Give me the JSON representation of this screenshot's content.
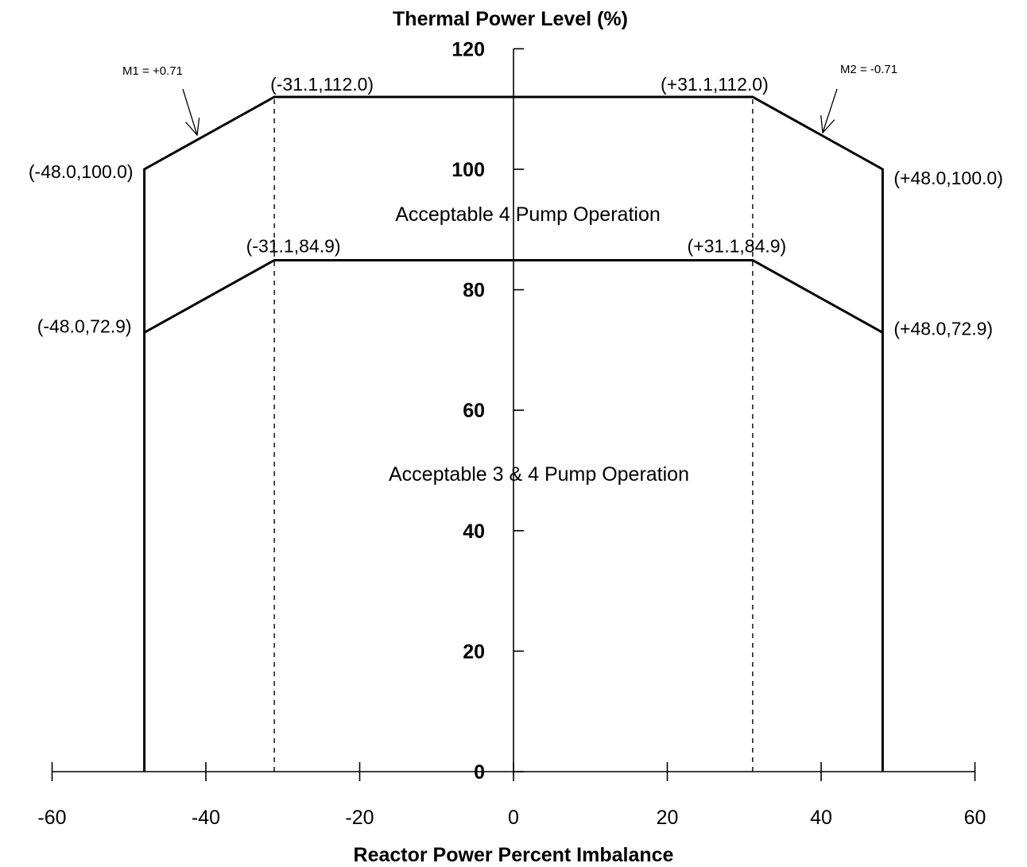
{
  "chart_data": {
    "type": "line",
    "title": "Thermal Power Level (%)",
    "xlabel": "Reactor Power Percent Imbalance",
    "ylabel": "Thermal Power Level (%)",
    "xlim": [
      -60,
      60
    ],
    "ylim": [
      0,
      120
    ],
    "xticks": [
      -60,
      -40,
      -20,
      0,
      20,
      40,
      60
    ],
    "yticks": [
      0,
      20,
      40,
      60,
      80,
      100,
      120
    ],
    "grid": false,
    "series": [
      {
        "x": [
          -48.0,
          -48.0,
          -31.1,
          31.1,
          48.0,
          48.0
        ],
        "y": [
          0,
          100.0,
          112.0,
          112.0,
          100.0,
          0
        ]
      },
      {
        "x": [
          -48.0,
          -31.1,
          31.1,
          48.0
        ],
        "y": [
          72.9,
          84.9,
          84.9,
          72.9
        ]
      }
    ],
    "reference_lines": [
      {
        "x": -31.1,
        "style": "dashed"
      },
      {
        "x": 31.1,
        "style": "dashed"
      }
    ],
    "point_labels": [
      {
        "x": -48.0,
        "y": 100.0,
        "text": "(-48.0,100.0)"
      },
      {
        "x": -31.1,
        "y": 112.0,
        "text": "(-31.1,112.0)"
      },
      {
        "x": 31.1,
        "y": 112.0,
        "text": "(+31.1,112.0)"
      },
      {
        "x": 48.0,
        "y": 100.0,
        "text": "(+48.0,100.0)"
      },
      {
        "x": -31.1,
        "y": 84.9,
        "text": "(-31.1,84.9)"
      },
      {
        "x": 31.1,
        "y": 84.9,
        "text": "(+31.1,84.9)"
      },
      {
        "x": -48.0,
        "y": 72.9,
        "text": "(-48.0,72.9)"
      },
      {
        "x": 48.0,
        "y": 72.9,
        "text": "(+48.0,72.9)"
      }
    ],
    "annotations": [
      {
        "text": "M1 = +0.71"
      },
      {
        "text": "M2 = -0.71"
      }
    ],
    "regions": [
      {
        "text": "Acceptable 4 Pump Operation"
      },
      {
        "text": "Acceptable 3 & 4 Pump Operation"
      }
    ]
  }
}
